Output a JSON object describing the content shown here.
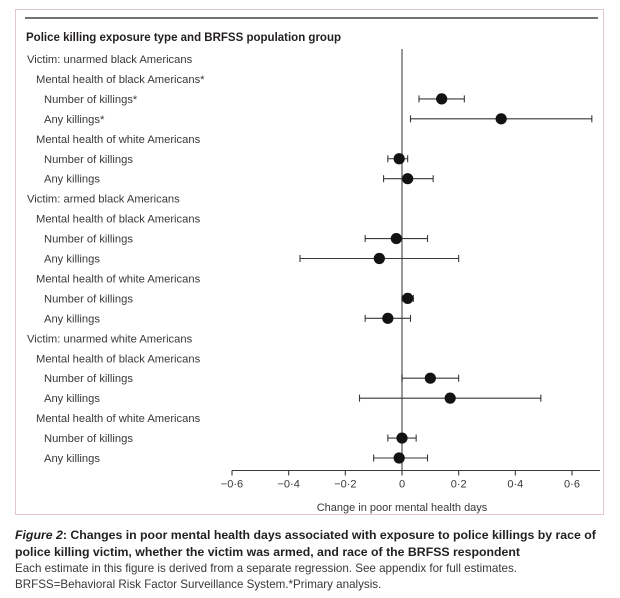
{
  "chart_data": {
    "type": "forest",
    "title": "Police killing exposure type and BRFSS population group",
    "xlabel": "Change in poor mental health days",
    "xlim": [
      -0.6,
      0.6
    ],
    "xticks": [
      -0.6,
      -0.4,
      -0.2,
      0,
      0.2,
      0.4,
      0.6
    ],
    "xtick_labels": [
      "−0·6",
      "−0·4",
      "−0·2",
      "0",
      "0·2",
      "0·4",
      "0·6"
    ],
    "reference_line": 0,
    "grid": false,
    "rows": [
      {
        "label": "Victim: unarmed black Americans",
        "level": 0
      },
      {
        "label": "Mental health of black Americans*",
        "level": 1
      },
      {
        "label": "Number of killings*",
        "level": 2,
        "estimate": 0.14,
        "ci_low": 0.06,
        "ci_high": 0.22
      },
      {
        "label": "Any killings*",
        "level": 2,
        "estimate": 0.35,
        "ci_low": 0.03,
        "ci_high": 0.67
      },
      {
        "label": "Mental health of white Americans",
        "level": 1
      },
      {
        "label": "Number of killings",
        "level": 2,
        "estimate": -0.01,
        "ci_low": -0.05,
        "ci_high": 0.02
      },
      {
        "label": "Any killings",
        "level": 2,
        "estimate": 0.02,
        "ci_low": -0.065,
        "ci_high": 0.11
      },
      {
        "label": "Victim: armed black Americans",
        "level": 0
      },
      {
        "label": "Mental health of black Americans",
        "level": 1
      },
      {
        "label": "Number of killings",
        "level": 2,
        "estimate": -0.02,
        "ci_low": -0.13,
        "ci_high": 0.09
      },
      {
        "label": "Any killings",
        "level": 2,
        "estimate": -0.08,
        "ci_low": -0.36,
        "ci_high": 0.2
      },
      {
        "label": "Mental health of white Americans",
        "level": 1
      },
      {
        "label": "Number of killings",
        "level": 2,
        "estimate": 0.02,
        "ci_low": 0.0,
        "ci_high": 0.04
      },
      {
        "label": "Any killings",
        "level": 2,
        "estimate": -0.05,
        "ci_low": -0.13,
        "ci_high": 0.03
      },
      {
        "label": "Victim: unarmed white Americans",
        "level": 0
      },
      {
        "label": "Mental health of black Americans",
        "level": 1
      },
      {
        "label": "Number of killings",
        "level": 2,
        "estimate": 0.1,
        "ci_low": 0.0,
        "ci_high": 0.2
      },
      {
        "label": "Any killings",
        "level": 2,
        "estimate": 0.17,
        "ci_low": -0.15,
        "ci_high": 0.49
      },
      {
        "label": "Mental health of white Americans",
        "level": 1
      },
      {
        "label": "Number of killings",
        "level": 2,
        "estimate": 0.0,
        "ci_low": -0.05,
        "ci_high": 0.05
      },
      {
        "label": "Any killings",
        "level": 2,
        "estimate": -0.01,
        "ci_low": -0.1,
        "ci_high": 0.09
      }
    ]
  },
  "caption": {
    "figure_label": "Figure 2",
    "heading": ": Changes in poor mental health days associated with exposure to police killings by race of police killing victim, whether the victim was armed, and race of the BRFSS respondent",
    "note": "Each estimate in this figure is derived from a separate regression. See appendix for full estimates. BRFSS=Behavioral Risk Factor Surveillance System.*Primary analysis."
  }
}
